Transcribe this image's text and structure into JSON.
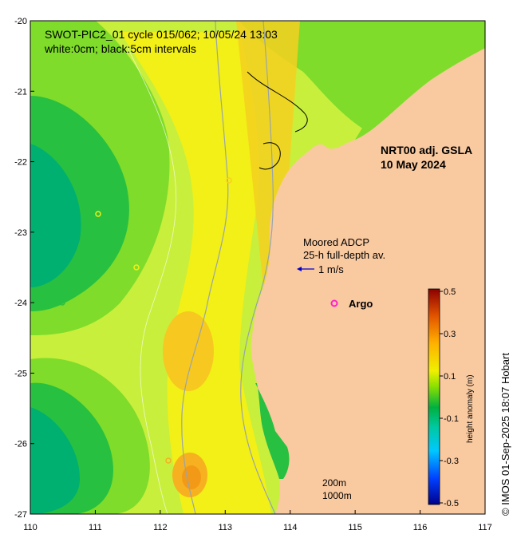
{
  "title_line1": "SWOT-PIC2_01 cycle 015/062; 10/05/24 13:03",
  "title_line2": "white:0cm; black:5cm intervals",
  "product_line1": "NRT00 adj. GSLA",
  "product_line2": "10 May 2024",
  "adcp_line1": "Moored ADCP",
  "adcp_line2": "25-h full-depth av.",
  "adcp_scale": "1 m/s",
  "argo_label": "Argo",
  "isobath_200": "200m",
  "isobath_1000": "1000m",
  "credit": "© IMOS 01-Sep-2025 18:07 Hobart",
  "colorbar": {
    "label": "height anomaly (m)",
    "ticks": [
      "0.5",
      "0.3",
      "0.1",
      "-0.1",
      "-0.3",
      "-0.5"
    ]
  },
  "axes": {
    "lon_ticks": [
      "110",
      "111",
      "112",
      "113",
      "114",
      "115",
      "116",
      "117"
    ],
    "lat_ticks": [
      "-20",
      "-21",
      "-22",
      "-23",
      "-24",
      "-25",
      "-26",
      "-27"
    ]
  },
  "colors": {
    "land": "#f9c9a0",
    "ocean_base": "#c8ef3c",
    "argo": "#ff22cc",
    "adcp_arrow": "#0000cc"
  }
}
